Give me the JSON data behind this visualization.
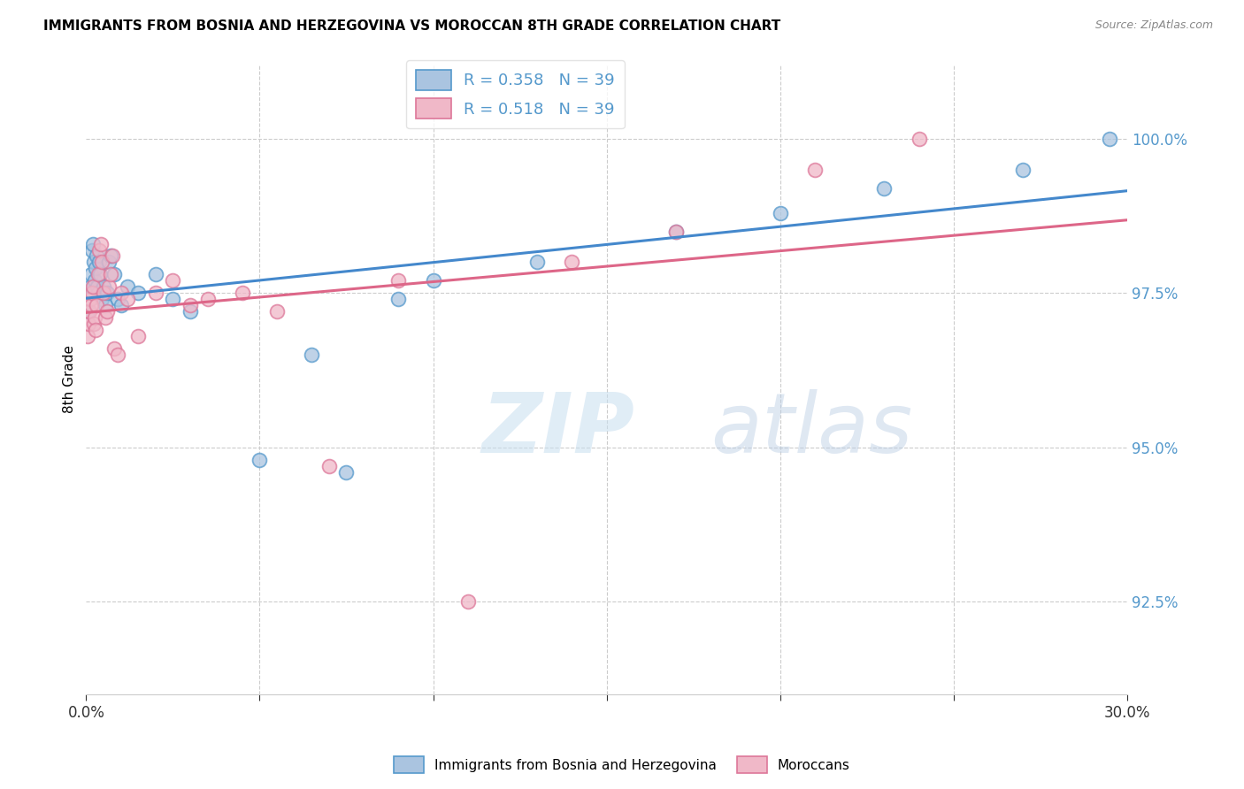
{
  "title": "IMMIGRANTS FROM BOSNIA AND HERZEGOVINA VS MOROCCAN 8TH GRADE CORRELATION CHART",
  "source": "Source: ZipAtlas.com",
  "ylabel": "8th Grade",
  "xmin": 0.0,
  "xmax": 30.0,
  "ymin": 91.0,
  "ymax": 101.2,
  "yticks": [
    92.5,
    95.0,
    97.5,
    100.0
  ],
  "ytick_labels": [
    "92.5%",
    "95.0%",
    "97.5%",
    "100.0%"
  ],
  "watermark_zip": "ZIP",
  "watermark_atlas": "atlas",
  "blue_color": "#aac4e0",
  "pink_color": "#f0b8c8",
  "blue_edge_color": "#5599cc",
  "pink_edge_color": "#dd7799",
  "blue_line_color": "#4488cc",
  "pink_line_color": "#dd6688",
  "tick_label_color": "#5599cc",
  "background": "#ffffff",
  "grid_color": "#cccccc",
  "blue_x": [
    0.05,
    0.1,
    0.12,
    0.15,
    0.18,
    0.2,
    0.22,
    0.25,
    0.28,
    0.3,
    0.32,
    0.35,
    0.38,
    0.4,
    0.45,
    0.5,
    0.55,
    0.6,
    0.65,
    0.7,
    0.8,
    0.9,
    1.0,
    1.2,
    1.5,
    2.0,
    2.5,
    3.0,
    5.0,
    6.5,
    7.5,
    9.0,
    10.0,
    13.0,
    17.0,
    20.0,
    23.0,
    27.0,
    29.5
  ],
  "blue_y": [
    97.2,
    97.5,
    97.6,
    97.8,
    98.2,
    98.3,
    98.0,
    97.7,
    97.9,
    98.1,
    97.6,
    97.5,
    98.0,
    97.8,
    97.4,
    97.6,
    97.3,
    97.5,
    98.0,
    98.1,
    97.8,
    97.4,
    97.3,
    97.6,
    97.5,
    97.8,
    97.4,
    97.2,
    94.8,
    96.5,
    94.6,
    97.4,
    97.7,
    98.0,
    98.5,
    98.8,
    99.2,
    99.5,
    100.0
  ],
  "pink_x": [
    0.05,
    0.08,
    0.1,
    0.12,
    0.15,
    0.18,
    0.2,
    0.22,
    0.25,
    0.28,
    0.3,
    0.35,
    0.38,
    0.42,
    0.45,
    0.5,
    0.55,
    0.6,
    0.65,
    0.7,
    0.75,
    0.8,
    0.9,
    1.0,
    1.2,
    1.5,
    2.0,
    2.5,
    3.0,
    3.5,
    4.5,
    5.5,
    7.0,
    9.0,
    11.0,
    14.0,
    17.0,
    21.0,
    24.0
  ],
  "pink_y": [
    96.8,
    97.0,
    97.2,
    97.4,
    97.3,
    97.5,
    97.6,
    97.0,
    97.1,
    96.9,
    97.3,
    97.8,
    98.2,
    98.3,
    98.0,
    97.5,
    97.1,
    97.2,
    97.6,
    97.8,
    98.1,
    96.6,
    96.5,
    97.5,
    97.4,
    96.8,
    97.5,
    97.7,
    97.3,
    97.4,
    97.5,
    97.2,
    94.7,
    97.7,
    92.5,
    98.0,
    98.5,
    99.5,
    100.0
  ]
}
